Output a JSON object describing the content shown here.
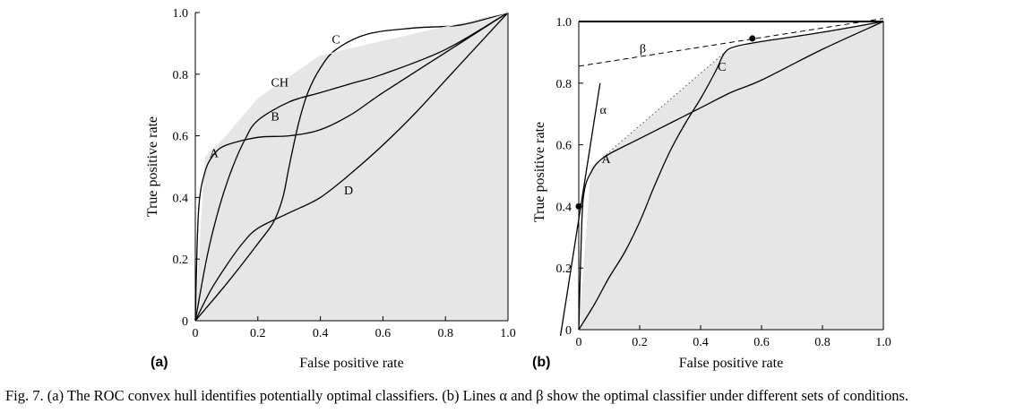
{
  "caption": "Fig. 7. (a) The ROC convex hull identifies potentially optimal classifiers. (b) Lines α and β show the optimal classifier under different sets of conditions.",
  "chart_data": [
    {
      "panel_label": "(a)",
      "type": "line",
      "xlabel": "False positive rate",
      "ylabel": "True positive rate",
      "xlim": [
        0,
        1
      ],
      "ylim": [
        0,
        1
      ],
      "xtick_labels": [
        "0",
        "0.2",
        "0.4",
        "0.6",
        "0.8",
        "1.0"
      ],
      "ytick_labels": [
        "0",
        "0.2",
        "0.4",
        "0.6",
        "0.8",
        "1.0"
      ],
      "grid": false,
      "shaded_region": {
        "color": "#e6e6e6",
        "vertices": [
          [
            0,
            0
          ],
          [
            0.03,
            0.53
          ],
          [
            0.1,
            0.6
          ],
          [
            0.2,
            0.72
          ],
          [
            0.4,
            0.86
          ],
          [
            1,
            1
          ],
          [
            1,
            0
          ]
        ]
      },
      "series": [
        {
          "name": "A",
          "x": [
            0,
            0.01,
            0.03,
            0.06,
            0.1,
            0.2,
            0.3,
            0.4,
            0.5,
            0.6,
            0.8,
            1.0
          ],
          "y": [
            0,
            0.35,
            0.48,
            0.54,
            0.57,
            0.595,
            0.6,
            0.62,
            0.67,
            0.74,
            0.87,
            1.0
          ]
        },
        {
          "name": "B",
          "x": [
            0,
            0.04,
            0.08,
            0.12,
            0.16,
            0.2,
            0.3,
            0.4,
            0.5,
            0.6,
            0.8,
            1.0
          ],
          "y": [
            0,
            0.22,
            0.38,
            0.5,
            0.59,
            0.65,
            0.71,
            0.74,
            0.77,
            0.8,
            0.88,
            1.0
          ]
        },
        {
          "name": "C",
          "x": [
            0,
            0.1,
            0.2,
            0.25,
            0.28,
            0.3,
            0.33,
            0.36,
            0.4,
            0.45,
            0.55,
            0.7,
            0.85,
            1.0
          ],
          "y": [
            0,
            0.12,
            0.25,
            0.32,
            0.4,
            0.5,
            0.64,
            0.74,
            0.82,
            0.88,
            0.93,
            0.95,
            0.96,
            1.0
          ]
        },
        {
          "name": "D",
          "x": [
            0,
            0.05,
            0.1,
            0.15,
            0.2,
            0.3,
            0.4,
            0.5,
            0.6,
            0.7,
            0.8,
            0.9,
            1.0
          ],
          "y": [
            0,
            0.1,
            0.18,
            0.25,
            0.3,
            0.35,
            0.4,
            0.48,
            0.57,
            0.67,
            0.78,
            0.89,
            1.0
          ]
        },
        {
          "name": "CH",
          "style": "hull-edge",
          "x": [
            0.03,
            0.1,
            0.2,
            0.4,
            1.0
          ],
          "y": [
            0.53,
            0.6,
            0.72,
            0.86,
            1.0
          ]
        }
      ],
      "annotations": [
        {
          "text": "A",
          "x": 0.06,
          "y": 0.53
        },
        {
          "text": "B",
          "x": 0.255,
          "y": 0.65
        },
        {
          "text": "C",
          "x": 0.45,
          "y": 0.9
        },
        {
          "text": "D",
          "x": 0.49,
          "y": 0.41
        },
        {
          "text": "CH",
          "x": 0.27,
          "y": 0.76
        }
      ]
    },
    {
      "panel_label": "(b)",
      "type": "line",
      "xlabel": "False positive rate",
      "ylabel": "True positive rate",
      "xlim": [
        0,
        1
      ],
      "ylim": [
        0,
        1
      ],
      "xtick_labels": [
        "0",
        "0.2",
        "0.4",
        "0.6",
        "0.8",
        "1.0"
      ],
      "ytick_labels": [
        "0",
        "0.2",
        "0.4",
        "0.6",
        "0.8",
        "1.0"
      ],
      "grid": false,
      "shaded_region": {
        "color": "#e6e6e6",
        "vertices": [
          [
            0,
            0
          ],
          [
            0.04,
            0.53
          ],
          [
            0.08,
            0.56
          ],
          [
            0.48,
            0.9
          ],
          [
            0.57,
            0.93
          ],
          [
            1,
            1
          ],
          [
            1,
            0
          ]
        ]
      },
      "series": [
        {
          "name": "A",
          "x": [
            0,
            0.01,
            0.02,
            0.04,
            0.06,
            0.1,
            0.2,
            0.3,
            0.4,
            0.5,
            0.6,
            0.8,
            1.0
          ],
          "y": [
            0,
            0.35,
            0.46,
            0.51,
            0.54,
            0.57,
            0.62,
            0.67,
            0.72,
            0.77,
            0.81,
            0.91,
            1.0
          ]
        },
        {
          "name": "C",
          "x": [
            0,
            0.05,
            0.1,
            0.15,
            0.2,
            0.25,
            0.3,
            0.35,
            0.4,
            0.45,
            0.48,
            0.52,
            0.6,
            0.8,
            1.0
          ],
          "y": [
            0,
            0.08,
            0.17,
            0.25,
            0.35,
            0.47,
            0.58,
            0.67,
            0.75,
            0.84,
            0.9,
            0.92,
            0.935,
            0.965,
            1.0
          ]
        },
        {
          "name": "α",
          "style": "iso-line",
          "x": [
            -0.06,
            0.07
          ],
          "y": [
            -0.02,
            0.8
          ]
        },
        {
          "name": "β",
          "style": "iso-line-dashed",
          "x": [
            0,
            1.0
          ],
          "y": [
            0.855,
            1.01
          ]
        },
        {
          "name": "",
          "style": "hull-dotted",
          "x": [
            0.08,
            0.48
          ],
          "y": [
            0.56,
            0.9
          ]
        }
      ],
      "points": [
        {
          "x": 0,
          "y": 0.4
        },
        {
          "x": 0.57,
          "y": 0.945
        }
      ],
      "annotations": [
        {
          "text": "α",
          "x": 0.08,
          "y": 0.7
        },
        {
          "text": "β",
          "x": 0.21,
          "y": 0.9
        },
        {
          "text": "A",
          "x": 0.09,
          "y": 0.54
        },
        {
          "text": "C",
          "x": 0.47,
          "y": 0.84
        }
      ]
    }
  ]
}
